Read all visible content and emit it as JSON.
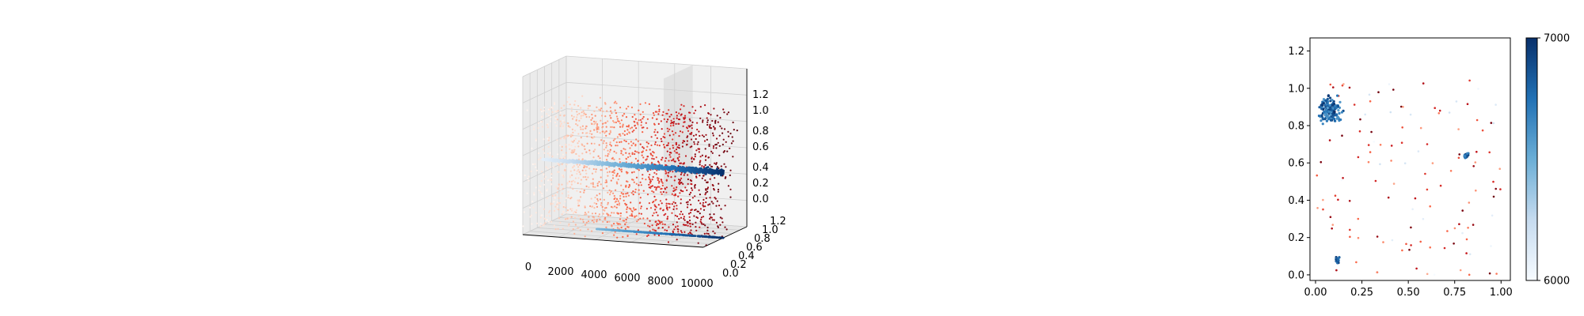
{
  "chart_data": [
    {
      "type": "scatter3d",
      "title": "",
      "xlabel": "",
      "ylabel": "",
      "zlabel": "",
      "x_ticks": [
        "0",
        "2000",
        "4000",
        "6000",
        "8000",
        "10000"
      ],
      "y_ticks": [
        "0.0",
        "0.2",
        "0.4",
        "0.6",
        "0.8",
        "1.0",
        "1.2"
      ],
      "z_ticks": [
        "0.0",
        "0.2",
        "0.4",
        "0.6",
        "0.8",
        "1.0",
        "1.2"
      ],
      "xlim": [
        0,
        10000
      ],
      "ylim": [
        0,
        1.2
      ],
      "zlim": [
        0,
        1.2
      ],
      "grid": true,
      "series": [
        {
          "kind": "scatter_cloud",
          "colormap": "Reds",
          "x_range": [
            0,
            10000
          ],
          "y_range": [
            0,
            1
          ],
          "z_range": [
            0,
            1
          ],
          "points": 1600
        },
        {
          "kind": "dense_line",
          "colormap": "Blues",
          "x_range": [
            0,
            10000
          ],
          "y": 0.5,
          "z": 0.5
        },
        {
          "kind": "dense_line_projection",
          "colormap": "Blues",
          "x_range": [
            3000,
            10000
          ],
          "z": 0.0
        }
      ],
      "planes": [
        {
          "orientation": "x",
          "x": 7000
        }
      ]
    },
    {
      "type": "scatter",
      "title": "",
      "xlabel": "",
      "ylabel": "",
      "x_ticks": [
        "0.00",
        "0.25",
        "0.50",
        "0.75",
        "1.00"
      ],
      "y_ticks": [
        "0.0",
        "0.2",
        "0.4",
        "0.6",
        "0.8",
        "1.0",
        "1.2"
      ],
      "xlim": [
        -0.03,
        1.05
      ],
      "ylim": [
        -0.03,
        1.27
      ],
      "grid": false,
      "colormap": "Blues",
      "colorbar": {
        "min": 6000,
        "max": 7000,
        "labels": [
          "7000",
          "6000"
        ]
      },
      "clusters": [
        {
          "x": 0.08,
          "y": 0.88,
          "spread": 0.03
        },
        {
          "x": 0.81,
          "y": 0.64,
          "spread": 0.006
        },
        {
          "x": 0.12,
          "y": 0.08,
          "spread": 0.006
        }
      ],
      "scattered_points": 130
    }
  ]
}
